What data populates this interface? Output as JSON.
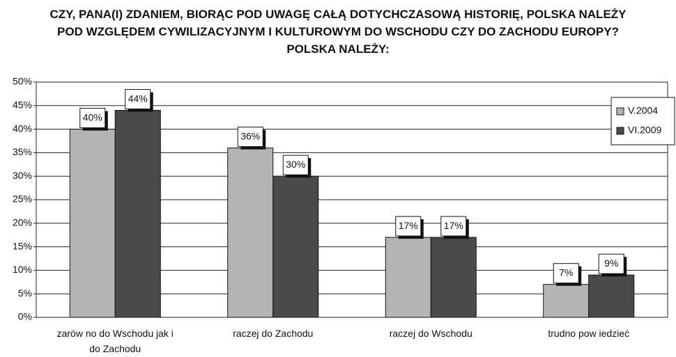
{
  "chart_data": {
    "type": "bar",
    "title": "CZY, PANA(I) ZDANIEM, BIORĄC POD UWAGĘ CAŁĄ DOTYCHCZASOWĄ HISTORIĘ, POLSKA NALEŻY POD WZGLĘDEM CYWILIZACYJNYM I KULTUROWYM DO WSCHODU CZY DO ZACHODU EUROPY? POLSKA NALEŻY:",
    "categories": [
      "zarów no do Wschodu jak i do Zachodu",
      "raczej do Zachodu",
      "raczej do Wschodu",
      "trudno pow iedzieć"
    ],
    "series": [
      {
        "name": "V.2004",
        "color": "#b4b4b4",
        "values": [
          40,
          36,
          17,
          7
        ],
        "value_labels": [
          "40%",
          "36%",
          "17%",
          "7%"
        ]
      },
      {
        "name": "VI.2009",
        "color": "#4a4a4a",
        "values": [
          44,
          30,
          17,
          9
        ],
        "value_labels": [
          "44%",
          "30%",
          "17%",
          "9%"
        ]
      }
    ],
    "ylim": [
      0,
      50
    ],
    "yticks": [
      {
        "value": 0,
        "label": "0%"
      },
      {
        "value": 5,
        "label": "5%"
      },
      {
        "value": 10,
        "label": "10%"
      },
      {
        "value": 15,
        "label": "15%"
      },
      {
        "value": 20,
        "label": "20%"
      },
      {
        "value": 25,
        "label": "25%"
      },
      {
        "value": 30,
        "label": "30%"
      },
      {
        "value": 35,
        "label": "35%"
      },
      {
        "value": 40,
        "label": "40%"
      },
      {
        "value": 45,
        "label": "45%"
      },
      {
        "value": 50,
        "label": "50%"
      }
    ],
    "grid": true,
    "legend": "upper right"
  }
}
